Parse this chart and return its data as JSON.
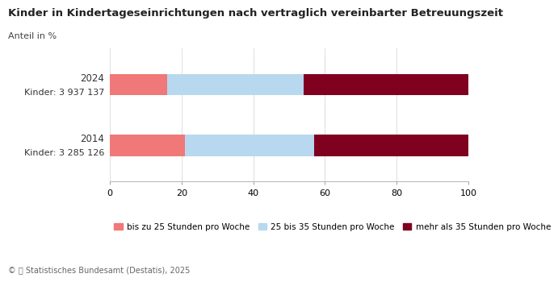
{
  "title": "Kinder in Kindertageseinrichtungen nach vertraglich vereinbarter Betreuungszeit",
  "subtitle": "Anteil in %",
  "years": [
    "2024",
    "2014"
  ],
  "children_counts": [
    "Kinder: 3 937 137",
    "Kinder: 3 285 126"
  ],
  "categories": [
    "bis zu 25 Stunden pro Woche",
    "25 bis 35 Stunden pro Woche",
    "mehr als 35 Stunden pro Woche"
  ],
  "values": {
    "2024": [
      16.0,
      38.0,
      46.0
    ],
    "2014": [
      21.0,
      36.0,
      43.0
    ]
  },
  "colors": [
    "#f07878",
    "#b8d8f0",
    "#800020"
  ],
  "xlim": [
    0,
    100
  ],
  "xticks": [
    0,
    20,
    40,
    60,
    80,
    100
  ],
  "background_color": "#ffffff",
  "title_fontsize": 9.5,
  "subtitle_fontsize": 8,
  "tick_fontsize": 8,
  "label_year_fontsize": 8.5,
  "label_count_fontsize": 8,
  "legend_fontsize": 7.5,
  "footer_fontsize": 7
}
